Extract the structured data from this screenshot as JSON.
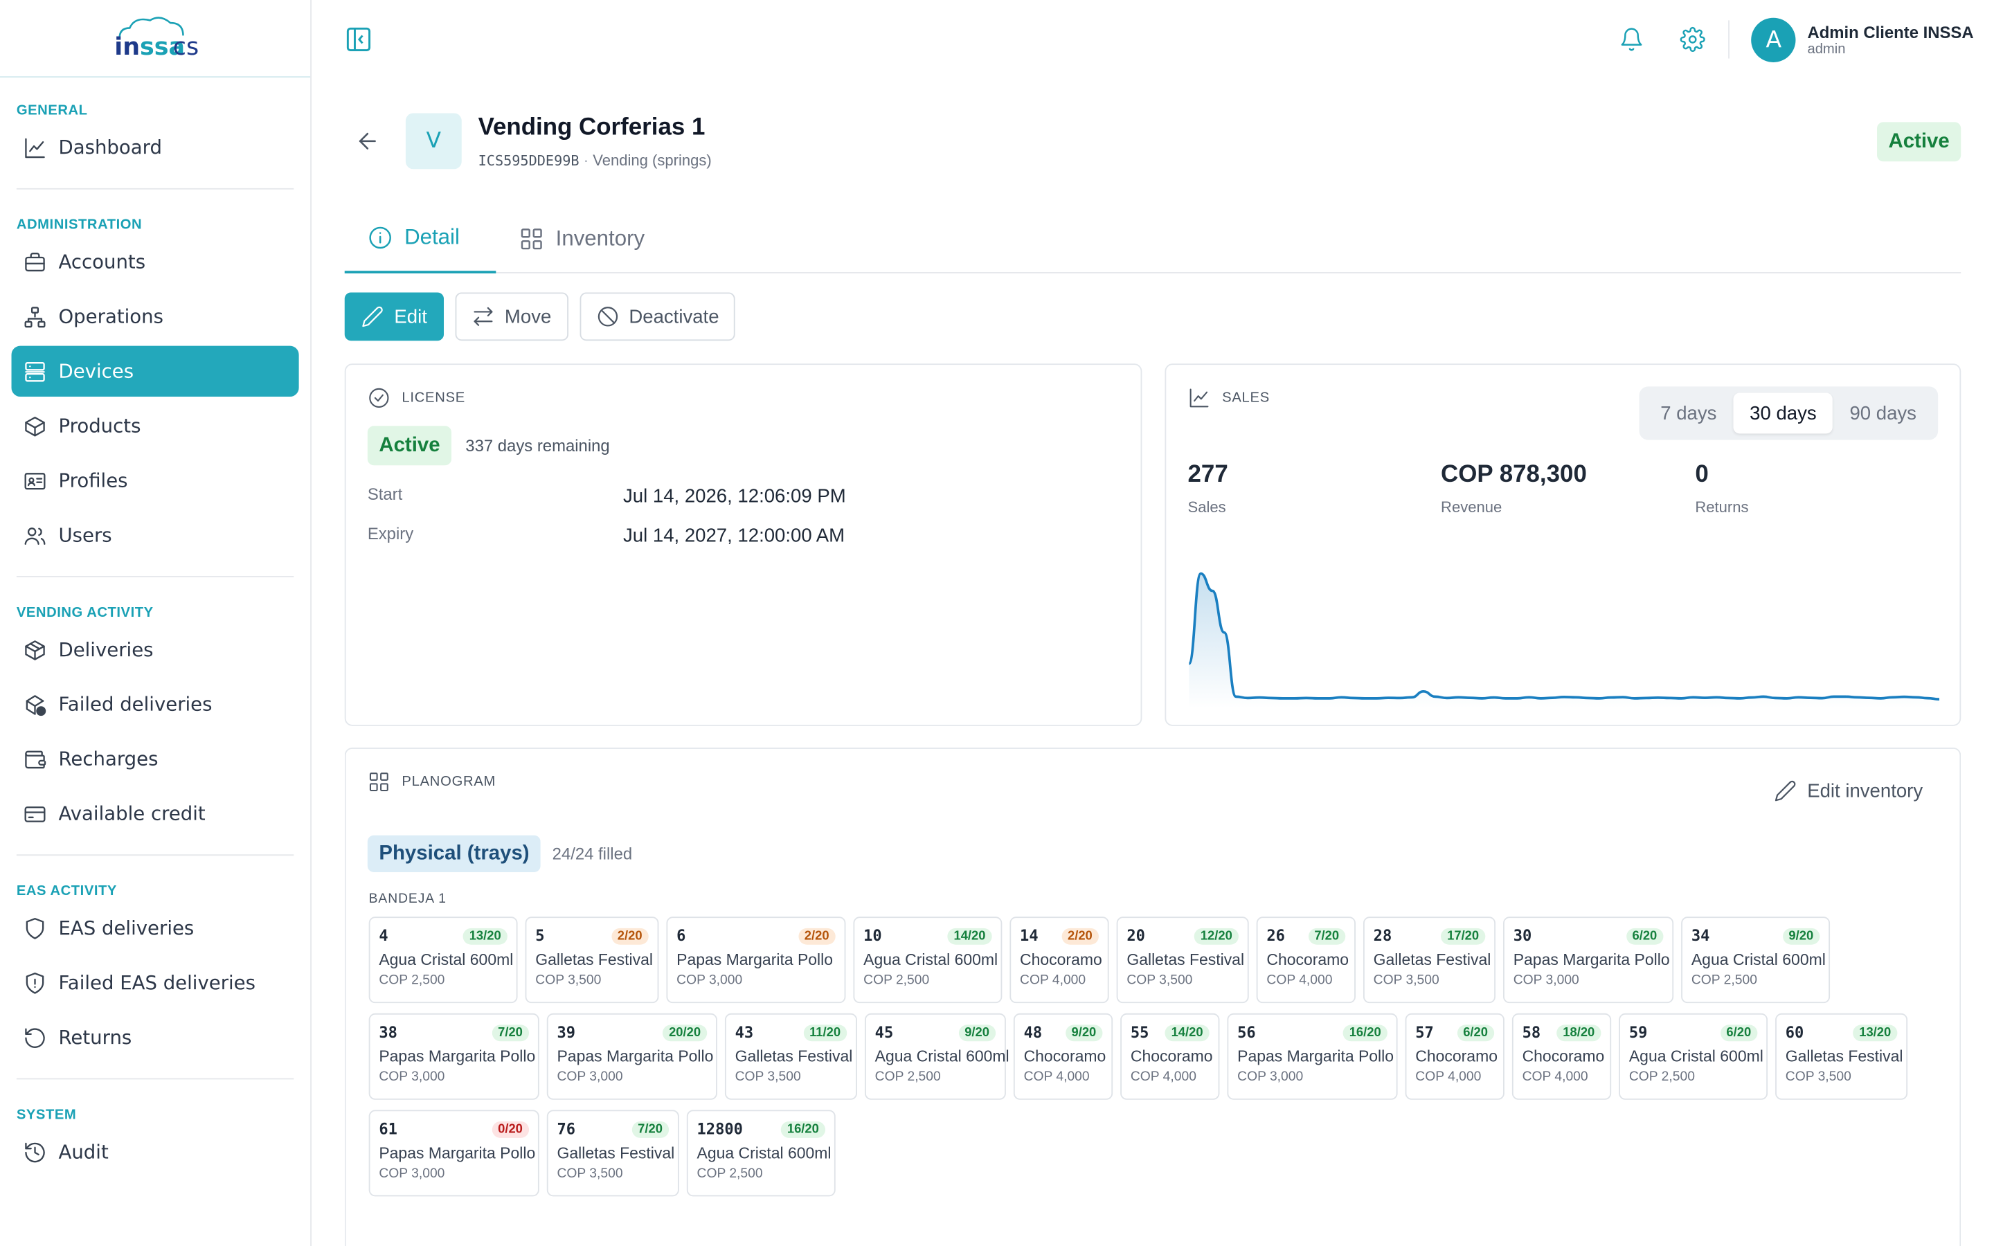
{
  "logo": {
    "text": "inssa cs"
  },
  "sidebar": {
    "sections": [
      {
        "title": "GENERAL",
        "items": [
          {
            "label": "Dashboard",
            "icon": "chart-line-icon"
          }
        ]
      },
      {
        "title": "ADMINISTRATION",
        "items": [
          {
            "label": "Accounts",
            "icon": "briefcase-icon"
          },
          {
            "label": "Operations",
            "icon": "network-icon"
          },
          {
            "label": "Devices",
            "icon": "server-icon",
            "active": true
          },
          {
            "label": "Products",
            "icon": "box-icon"
          },
          {
            "label": "Profiles",
            "icon": "id-card-icon"
          },
          {
            "label": "Users",
            "icon": "users-icon"
          }
        ]
      },
      {
        "title": "VENDING ACTIVITY",
        "items": [
          {
            "label": "Deliveries",
            "icon": "package-icon"
          },
          {
            "label": "Failed deliveries",
            "icon": "package-alert-icon"
          },
          {
            "label": "Recharges",
            "icon": "wallet-icon"
          },
          {
            "label": "Available credit",
            "icon": "credit-card-icon"
          }
        ]
      },
      {
        "title": "EAS ACTIVITY",
        "items": [
          {
            "label": "EAS deliveries",
            "icon": "shield-icon"
          },
          {
            "label": "Failed EAS deliveries",
            "icon": "shield-alert-icon"
          },
          {
            "label": "Returns",
            "icon": "undo-icon"
          }
        ]
      },
      {
        "title": "SYSTEM",
        "items": [
          {
            "label": "Audit",
            "icon": "history-icon"
          }
        ]
      }
    ]
  },
  "header": {
    "user_name": "Admin Cliente INSSA",
    "user_role": "admin",
    "avatar_letter": "A"
  },
  "device": {
    "avatar_letter": "V",
    "title": "Vending Corferias 1",
    "code": "ICS595DDE99B",
    "separator": "·",
    "type": "Vending (springs)",
    "status": "Active"
  },
  "tabs": [
    {
      "label": "Detail",
      "active": true
    },
    {
      "label": "Inventory"
    }
  ],
  "actions": {
    "edit": "Edit",
    "move": "Move",
    "deactivate": "Deactivate"
  },
  "license": {
    "label": "LICENSE",
    "status": "Active",
    "remaining": "337 days remaining",
    "start_label": "Start",
    "start_value": "Jul 14, 2026, 12:06:09 PM",
    "expiry_label": "Expiry",
    "expiry_value": "Jul 14, 2027, 12:00:00 AM"
  },
  "sales": {
    "label": "SALES",
    "ranges": [
      "7 days",
      "30 days",
      "90 days"
    ],
    "selected_range": "30 days",
    "kpis": [
      {
        "value": "277",
        "label": "Sales"
      },
      {
        "value": "COP 878,300",
        "label": "Revenue"
      },
      {
        "value": "0",
        "label": "Returns"
      }
    ],
    "line_color": "#1a7fc1"
  },
  "chart_data": {
    "type": "area",
    "x": [
      1,
      2,
      3,
      4,
      5,
      6,
      7,
      8,
      9,
      10,
      11,
      12,
      13,
      14,
      15,
      16,
      17,
      18,
      19,
      20,
      21,
      22,
      23,
      24,
      25,
      26,
      27,
      28,
      29,
      30,
      31,
      32,
      33,
      34,
      35,
      36,
      37,
      38,
      39,
      40,
      41,
      42,
      43,
      44,
      45,
      46,
      47,
      48,
      49,
      50,
      51,
      52,
      53,
      54,
      55,
      56,
      57,
      58,
      59,
      60,
      61,
      62,
      63,
      64,
      65
    ],
    "values": [
      20,
      72,
      62,
      38,
      1,
      0.2,
      0.5,
      0.2,
      0,
      0,
      0.2,
      0,
      0,
      0.6,
      0.2,
      0,
      0,
      0.3,
      0.2,
      0.6,
      4,
      1,
      0.2,
      0.6,
      0.3,
      0,
      0.5,
      0,
      0,
      0.6,
      0,
      0.3,
      0.8,
      0.6,
      0.2,
      0,
      0.5,
      0.7,
      0,
      0.2,
      0.4,
      0.2,
      0,
      0.6,
      0.3,
      0.6,
      0.2,
      0,
      0.5,
      1,
      0.2,
      0,
      0.6,
      0.3,
      0.1,
      1,
      1,
      0.6,
      0.3,
      0,
      0.6,
      0.9,
      0.6,
      0.1,
      -0.5
    ],
    "title": "",
    "xlabel": "",
    "ylabel": ""
  },
  "planogram": {
    "label": "PLANOGRAM",
    "edit_label": "Edit inventory",
    "mode": "Physical (trays)",
    "filled": "24/24 filled",
    "tray": "BANDEJA 1",
    "rows": [
      [
        {
          "num": "4",
          "qty": "13/20",
          "level": "g",
          "name": "Agua Cristal 600ml",
          "price": "COP 2,500"
        },
        {
          "num": "5",
          "qty": "2/20",
          "level": "o",
          "name": "Galletas Festival",
          "price": "COP 3,500"
        },
        {
          "num": "6",
          "qty": "2/20",
          "level": "o",
          "name": "Papas Margarita Pollo",
          "price": "COP 3,000"
        },
        {
          "num": "10",
          "qty": "14/20",
          "level": "g",
          "name": "Agua Cristal 600ml",
          "price": "COP 2,500"
        },
        {
          "num": "14",
          "qty": "2/20",
          "level": "o",
          "name": "Chocoramo",
          "price": "COP 4,000"
        },
        {
          "num": "20",
          "qty": "12/20",
          "level": "g",
          "name": "Galletas Festival",
          "price": "COP 3,500"
        },
        {
          "num": "26",
          "qty": "7/20",
          "level": "g",
          "name": "Chocoramo",
          "price": "COP 4,000"
        },
        {
          "num": "28",
          "qty": "17/20",
          "level": "g",
          "name": "Galletas Festival",
          "price": "COP 3,500"
        },
        {
          "num": "30",
          "qty": "6/20",
          "level": "g",
          "name": "Papas Margarita Pollo",
          "price": "COP 3,000"
        },
        {
          "num": "34",
          "qty": "9/20",
          "level": "g",
          "name": "Agua Cristal 600ml",
          "price": "COP 2,500"
        }
      ],
      [
        {
          "num": "38",
          "qty": "7/20",
          "level": "g",
          "name": "Papas Margarita Pollo",
          "price": "COP 3,000"
        },
        {
          "num": "39",
          "qty": "20/20",
          "level": "g",
          "name": "Papas Margarita Pollo",
          "price": "COP 3,000"
        },
        {
          "num": "43",
          "qty": "11/20",
          "level": "g",
          "name": "Galletas Festival",
          "price": "COP 3,500"
        },
        {
          "num": "45",
          "qty": "9/20",
          "level": "g",
          "name": "Agua Cristal 600ml",
          "price": "COP 2,500"
        },
        {
          "num": "48",
          "qty": "9/20",
          "level": "g",
          "name": "Chocoramo",
          "price": "COP 4,000"
        },
        {
          "num": "55",
          "qty": "14/20",
          "level": "g",
          "name": "Chocoramo",
          "price": "COP 4,000"
        },
        {
          "num": "56",
          "qty": "16/20",
          "level": "g",
          "name": "Papas Margarita Pollo",
          "price": "COP 3,000"
        },
        {
          "num": "57",
          "qty": "6/20",
          "level": "g",
          "name": "Chocoramo",
          "price": "COP 4,000"
        },
        {
          "num": "58",
          "qty": "18/20",
          "level": "g",
          "name": "Chocoramo",
          "price": "COP 4,000"
        },
        {
          "num": "59",
          "qty": "6/20",
          "level": "g",
          "name": "Agua Cristal 600ml",
          "price": "COP 2,500"
        },
        {
          "num": "60",
          "qty": "13/20",
          "level": "g",
          "name": "Galletas Festival",
          "price": "COP 3,500"
        }
      ],
      [
        {
          "num": "61",
          "qty": "0/20",
          "level": "r",
          "name": "Papas Margarita Pollo",
          "price": "COP 3,000"
        },
        {
          "num": "76",
          "qty": "7/20",
          "level": "g",
          "name": "Galletas Festival",
          "price": "COP 3,500"
        },
        {
          "num": "12800",
          "qty": "16/20",
          "level": "g",
          "name": "Agua Cristal 600ml",
          "price": "COP 2,500"
        }
      ]
    ]
  }
}
